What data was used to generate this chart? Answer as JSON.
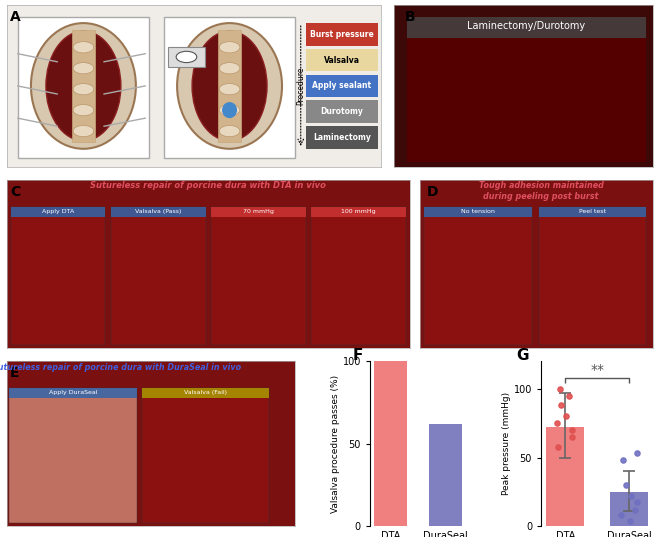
{
  "panel_F": {
    "title": "F",
    "categories": [
      "DTA",
      "DuraSeal"
    ],
    "values": [
      100,
      62
    ],
    "bar_colors": [
      "#F08080",
      "#8080C0"
    ],
    "ylabel": "Valsalva procedure passes (%)",
    "ylim": [
      0,
      100
    ],
    "yticks": [
      0,
      50,
      100
    ]
  },
  "panel_G": {
    "title": "G",
    "categories": [
      "DTA",
      "DuraSeal"
    ],
    "means": [
      72,
      25
    ],
    "errors_upper": [
      25,
      15
    ],
    "errors_lower": [
      22,
      14
    ],
    "bar_colors": [
      "#F08080",
      "#8080C0"
    ],
    "dot_colors": [
      "#E05050",
      "#7070C0"
    ],
    "ylabel": "Peak pressure (mmHg)",
    "ylim": [
      0,
      120
    ],
    "yticks": [
      0,
      50,
      100
    ],
    "significance": "**",
    "dta_dots": [
      100,
      95,
      88,
      80,
      75,
      70,
      65,
      58
    ],
    "duraseal_dots": [
      53,
      48,
      30,
      22,
      18,
      12,
      8,
      4
    ]
  },
  "panel_A": {
    "title": "A",
    "bg_color": "#f0ede8",
    "box1_color": "#e8e4de",
    "box2_color": "#e8e4de",
    "spine_color": "#8B4513",
    "dura_color": "#D2B48C",
    "procedure_labels": [
      "Laminectomy",
      "Durotomy",
      "Apply sealant",
      "Valsalva",
      "Burst pressure"
    ],
    "procedure_colors": [
      "#555555",
      "#888888",
      "#4472C4",
      "#E8D8A0",
      "#C0392B"
    ],
    "procedure_text_colors": [
      "white",
      "white",
      "white",
      "black",
      "white"
    ],
    "arrow_label": "Procedure"
  },
  "panel_B": {
    "title": "B",
    "bg_color": "#1a0000",
    "label": "Laminectomy/Durotomy",
    "label_bg": "#555555"
  },
  "panel_C": {
    "title": "C",
    "bg_color": "#6b0000",
    "title_text": "Sutureless repair of porcine dura with DTA in vivo",
    "title_color": "#E05060",
    "sublabels": [
      "Apply DTA",
      "Valsalva (Pass)",
      "70 mmHg",
      "100 mmHg"
    ],
    "sublabel_colors": [
      "#3366AA",
      "#3366AA",
      "#CC3333",
      "#CC3333"
    ]
  },
  "panel_D": {
    "title": "D",
    "bg_color": "#6b0000",
    "title_text": "Tough adhesion maintained\nduring peeling post burst",
    "title_color": "#E05060",
    "sublabels": [
      "No tension",
      "Peel test"
    ],
    "sublabel_colors": [
      "#3366AA",
      "#3366AA"
    ]
  },
  "panel_E": {
    "title": "E",
    "bg_color": "#6b0000",
    "title_text": "Sutureless repair of porcine dura with DuraSeal in vivo",
    "title_color": "#4060E0",
    "sublabels": [
      "Apply DuraSeal",
      "Valsalva (Fail)"
    ],
    "sublabel_colors": [
      "#3366AA",
      "#AA9900"
    ]
  },
  "background_color": "#ffffff",
  "figure_border_color": "#aaaaaa"
}
